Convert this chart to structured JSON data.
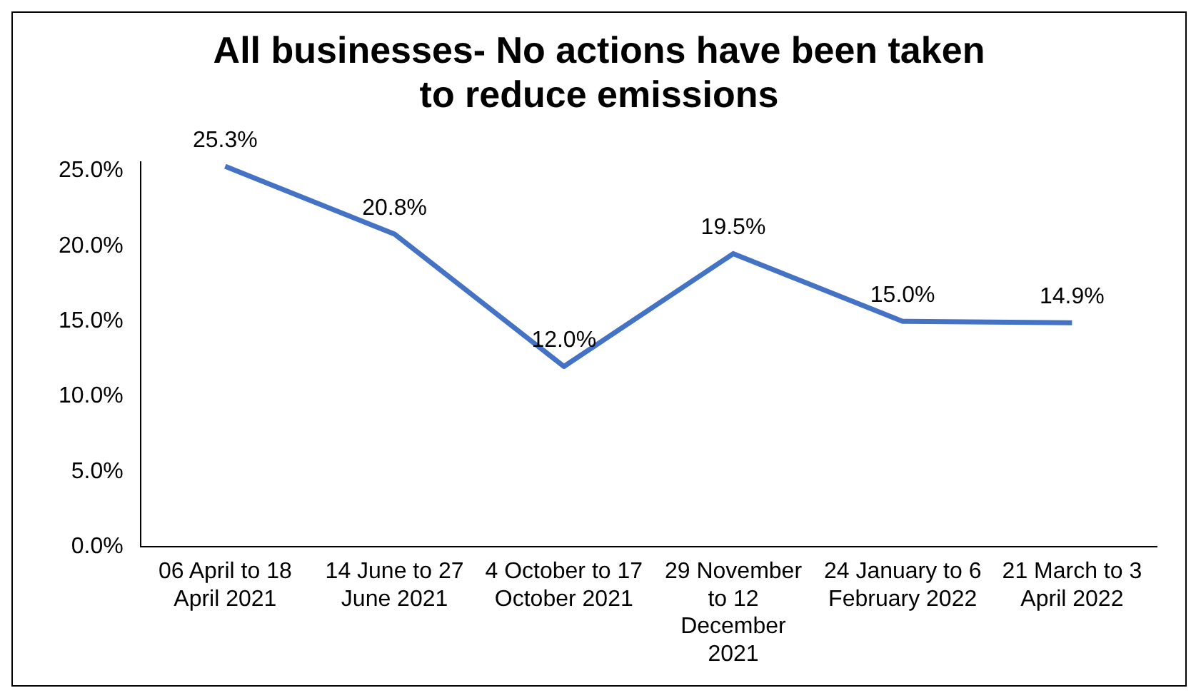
{
  "chart_data": {
    "type": "line",
    "title": "All businesses- No actions have been taken to reduce emissions",
    "categories": [
      "06 April to 18 April 2021",
      "14 June to 27 June 2021",
      "4 October to 17 October 2021",
      "29 November to 12 December 2021",
      "24 January to 6 February 2022",
      "21 March to 3 April 2022"
    ],
    "series": [
      {
        "color": "#4472c4",
        "values": [
          25.3,
          20.8,
          12.0,
          19.5,
          15.0,
          14.9
        ],
        "value_labels": [
          "25.3%",
          "20.8%",
          "12.0%",
          "19.5%",
          "15.0%",
          "14.9%"
        ]
      }
    ],
    "ylim": [
      0,
      25.6
    ],
    "yticks": [
      {
        "value": 0,
        "label": "0.0%"
      },
      {
        "value": 5,
        "label": "5.0%"
      },
      {
        "value": 10,
        "label": "10.0%"
      },
      {
        "value": 15,
        "label": "15.0%"
      },
      {
        "value": 20,
        "label": "20.0%"
      },
      {
        "value": 25,
        "label": "25.0%"
      }
    ],
    "grid": false,
    "legend": false,
    "marker": "none",
    "line_style": "solid"
  }
}
